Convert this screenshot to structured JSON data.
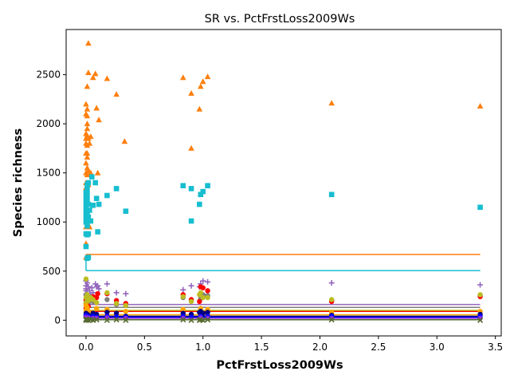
{
  "chart_data": {
    "type": "scatter",
    "title": "SR vs. PctFrstLoss2009Ws",
    "xlabel": "PctFrstLoss2009Ws",
    "ylabel": "Species richness",
    "xlim": [
      -0.17,
      3.55
    ],
    "ylim": [
      -160,
      2960
    ],
    "xticks": [
      0.0,
      0.5,
      1.0,
      1.5,
      2.0,
      2.5,
      3.0,
      3.5
    ],
    "xtick_labels": [
      "0.0",
      "0.5",
      "1.0",
      "1.5",
      "2.0",
      "2.5",
      "3.0",
      "3.5"
    ],
    "yticks": [
      0,
      500,
      1000,
      1500,
      2000,
      2500
    ],
    "ytick_labels": [
      "0",
      "500",
      "1000",
      "1500",
      "2000",
      "2500"
    ],
    "grid": false,
    "legend": "none",
    "series": [
      {
        "color": "#ff7f0e",
        "marker": "triangle",
        "hline": 670,
        "points": [
          [
            0.0,
            1850
          ],
          [
            0.0,
            1800
          ],
          [
            0.0,
            1900
          ],
          [
            0.0,
            1700
          ],
          [
            0.0,
            1600
          ],
          [
            0.0,
            2100
          ],
          [
            0.0,
            2200
          ],
          [
            0.0,
            1500
          ],
          [
            0.0,
            1400
          ],
          [
            0.0,
            1350
          ],
          [
            0.0,
            1000
          ],
          [
            0.0,
            950
          ],
          [
            0.0,
            780
          ],
          [
            0.0,
            640
          ],
          [
            0.01,
            2380
          ],
          [
            0.01,
            2150
          ],
          [
            0.01,
            2080
          ],
          [
            0.01,
            2000
          ],
          [
            0.01,
            1950
          ],
          [
            0.01,
            1880
          ],
          [
            0.01,
            1780
          ],
          [
            0.01,
            1700
          ],
          [
            0.01,
            1660
          ],
          [
            0.01,
            1550
          ],
          [
            0.01,
            1480
          ],
          [
            0.01,
            1200
          ],
          [
            0.02,
            2520
          ],
          [
            0.02,
            2820
          ],
          [
            0.02,
            1850
          ],
          [
            0.02,
            1520
          ],
          [
            0.02,
            1380
          ],
          [
            0.03,
            1800
          ],
          [
            0.03,
            950
          ],
          [
            0.04,
            1870
          ],
          [
            0.04,
            1500
          ],
          [
            0.06,
            2470
          ],
          [
            0.08,
            2510
          ],
          [
            0.09,
            2160
          ],
          [
            0.1,
            1500
          ],
          [
            0.11,
            2040
          ],
          [
            0.18,
            2460
          ],
          [
            0.26,
            2300
          ],
          [
            0.33,
            1820
          ],
          [
            0.83,
            2470
          ],
          [
            0.9,
            2310
          ],
          [
            0.9,
            1750
          ],
          [
            0.97,
            2150
          ],
          [
            0.98,
            2380
          ],
          [
            1.0,
            2430
          ],
          [
            1.04,
            2480
          ],
          [
            2.1,
            2210
          ],
          [
            3.37,
            2180
          ]
        ]
      },
      {
        "color": "#17becf",
        "marker": "square",
        "hline": 505,
        "points": [
          [
            0.0,
            1300
          ],
          [
            0.0,
            1250
          ],
          [
            0.0,
            1200
          ],
          [
            0.0,
            1150
          ],
          [
            0.0,
            1100
          ],
          [
            0.0,
            1050
          ],
          [
            0.0,
            1000
          ],
          [
            0.0,
            880
          ],
          [
            0.0,
            750
          ],
          [
            0.01,
            1380
          ],
          [
            0.01,
            1330
          ],
          [
            0.01,
            1280
          ],
          [
            0.01,
            1230
          ],
          [
            0.01,
            1080
          ],
          [
            0.01,
            1020
          ],
          [
            0.01,
            960
          ],
          [
            0.01,
            870
          ],
          [
            0.01,
            630
          ],
          [
            0.02,
            1400
          ],
          [
            0.02,
            1180
          ],
          [
            0.02,
            1050
          ],
          [
            0.02,
            880
          ],
          [
            0.02,
            640
          ],
          [
            0.03,
            1120
          ],
          [
            0.04,
            1010
          ],
          [
            0.05,
            1460
          ],
          [
            0.06,
            1170
          ],
          [
            0.08,
            1400
          ],
          [
            0.09,
            1240
          ],
          [
            0.1,
            900
          ],
          [
            0.11,
            1180
          ],
          [
            0.18,
            1270
          ],
          [
            0.26,
            1340
          ],
          [
            0.34,
            1110
          ],
          [
            0.83,
            1370
          ],
          [
            0.9,
            1340
          ],
          [
            0.9,
            1010
          ],
          [
            0.97,
            1180
          ],
          [
            0.98,
            1280
          ],
          [
            1.0,
            1310
          ],
          [
            1.04,
            1370
          ],
          [
            2.1,
            1280
          ],
          [
            3.37,
            1150
          ]
        ]
      },
      {
        "color": "#9467bd",
        "marker": "plus",
        "hline": 160,
        "points": [
          [
            0.0,
            400
          ],
          [
            0.0,
            350
          ],
          [
            0.0,
            320
          ],
          [
            0.0,
            300
          ],
          [
            0.0,
            260
          ],
          [
            0.01,
            380
          ],
          [
            0.01,
            300
          ],
          [
            0.01,
            250
          ],
          [
            0.02,
            340
          ],
          [
            0.02,
            220
          ],
          [
            0.03,
            300
          ],
          [
            0.04,
            260
          ],
          [
            0.05,
            330
          ],
          [
            0.06,
            280
          ],
          [
            0.08,
            370
          ],
          [
            0.09,
            340
          ],
          [
            0.1,
            350
          ],
          [
            0.11,
            320
          ],
          [
            0.18,
            370
          ],
          [
            0.26,
            280
          ],
          [
            0.34,
            270
          ],
          [
            0.83,
            310
          ],
          [
            0.9,
            350
          ],
          [
            0.97,
            340
          ],
          [
            0.98,
            370
          ],
          [
            1.0,
            400
          ],
          [
            1.04,
            390
          ],
          [
            2.1,
            380
          ],
          [
            3.37,
            360
          ]
        ]
      },
      {
        "color": "#7f7f7f",
        "marker": "circle",
        "hline": 130,
        "points": [
          [
            0.0,
            260
          ],
          [
            0.0,
            200
          ],
          [
            0.0,
            150
          ],
          [
            0.01,
            230
          ],
          [
            0.02,
            180
          ],
          [
            0.04,
            210
          ],
          [
            0.06,
            190
          ],
          [
            0.09,
            230
          ],
          [
            0.18,
            210
          ],
          [
            0.26,
            160
          ],
          [
            0.34,
            150
          ],
          [
            0.83,
            230
          ],
          [
            0.9,
            200
          ],
          [
            0.98,
            220
          ],
          [
            1.0,
            260
          ],
          [
            1.04,
            250
          ],
          [
            2.1,
            200
          ],
          [
            3.37,
            250
          ]
        ]
      },
      {
        "color": "#ff0000",
        "marker": "circle",
        "hline": 90,
        "points": [
          [
            0.0,
            210
          ],
          [
            0.0,
            170
          ],
          [
            0.0,
            120
          ],
          [
            0.01,
            190
          ],
          [
            0.02,
            140
          ],
          [
            0.06,
            240
          ],
          [
            0.09,
            230
          ],
          [
            0.1,
            270
          ],
          [
            0.18,
            270
          ],
          [
            0.26,
            200
          ],
          [
            0.34,
            170
          ],
          [
            0.83,
            260
          ],
          [
            0.9,
            210
          ],
          [
            0.97,
            190
          ],
          [
            0.98,
            340
          ],
          [
            1.0,
            330
          ],
          [
            1.04,
            300
          ],
          [
            2.1,
            190
          ],
          [
            3.37,
            240
          ]
        ]
      },
      {
        "color": "#bcbd22",
        "marker": "circle",
        "hline": 100,
        "points": [
          [
            0.0,
            420
          ],
          [
            0.0,
            230
          ],
          [
            0.0,
            180
          ],
          [
            0.01,
            260
          ],
          [
            0.02,
            200
          ],
          [
            0.04,
            230
          ],
          [
            0.06,
            210
          ],
          [
            0.09,
            180
          ],
          [
            0.18,
            280
          ],
          [
            0.26,
            170
          ],
          [
            0.34,
            150
          ],
          [
            0.83,
            240
          ],
          [
            0.9,
            190
          ],
          [
            0.97,
            260
          ],
          [
            0.98,
            280
          ],
          [
            1.0,
            230
          ],
          [
            1.04,
            230
          ],
          [
            2.1,
            210
          ],
          [
            3.37,
            260
          ]
        ]
      },
      {
        "color": "#ffa500",
        "marker": "circle",
        "hline": 55,
        "points": [
          [
            0.0,
            150
          ],
          [
            0.0,
            100
          ],
          [
            0.01,
            130
          ],
          [
            0.02,
            90
          ],
          [
            0.09,
            120
          ],
          [
            0.18,
            110
          ],
          [
            0.34,
            90
          ],
          [
            0.83,
            110
          ],
          [
            0.98,
            120
          ],
          [
            1.04,
            110
          ],
          [
            2.1,
            80
          ],
          [
            3.37,
            90
          ]
        ]
      },
      {
        "color": "#000080",
        "marker": "circle",
        "hline": 40,
        "points": [
          [
            0.0,
            70
          ],
          [
            0.0,
            40
          ],
          [
            0.01,
            60
          ],
          [
            0.02,
            50
          ],
          [
            0.06,
            70
          ],
          [
            0.09,
            60
          ],
          [
            0.18,
            80
          ],
          [
            0.26,
            70
          ],
          [
            0.34,
            40
          ],
          [
            0.83,
            70
          ],
          [
            0.9,
            60
          ],
          [
            0.97,
            80
          ],
          [
            0.98,
            90
          ],
          [
            1.0,
            70
          ],
          [
            1.04,
            80
          ],
          [
            2.1,
            50
          ],
          [
            3.37,
            60
          ]
        ]
      },
      {
        "color": "#0000ff",
        "marker": "circle",
        "hline": 30,
        "points": [
          [
            0.0,
            50
          ],
          [
            0.0,
            30
          ],
          [
            0.01,
            40
          ],
          [
            0.02,
            35
          ],
          [
            0.06,
            40
          ],
          [
            0.09,
            30
          ],
          [
            0.18,
            40
          ],
          [
            0.26,
            35
          ],
          [
            0.34,
            30
          ],
          [
            0.83,
            40
          ],
          [
            0.9,
            30
          ],
          [
            0.98,
            40
          ],
          [
            1.04,
            40
          ],
          [
            2.1,
            40
          ],
          [
            3.37,
            40
          ]
        ]
      },
      {
        "color": "#8a2be2",
        "marker": "circle",
        "hline": 20,
        "points": [
          [
            0.0,
            30
          ],
          [
            0.01,
            20
          ],
          [
            0.02,
            25
          ],
          [
            0.06,
            20
          ],
          [
            0.09,
            20
          ],
          [
            0.18,
            25
          ],
          [
            0.34,
            20
          ],
          [
            0.83,
            20
          ],
          [
            0.98,
            25
          ],
          [
            1.04,
            20
          ],
          [
            2.1,
            20
          ],
          [
            3.37,
            20
          ]
        ]
      },
      {
        "color": "#556b2f",
        "marker": "x",
        "hline": 5,
        "points": [
          [
            0.0,
            10
          ],
          [
            0.0,
            0
          ],
          [
            0.01,
            5
          ],
          [
            0.02,
            0
          ],
          [
            0.04,
            5
          ],
          [
            0.06,
            0
          ],
          [
            0.09,
            5
          ],
          [
            0.18,
            0
          ],
          [
            0.26,
            5
          ],
          [
            0.34,
            0
          ],
          [
            0.83,
            5
          ],
          [
            0.9,
            0
          ],
          [
            0.97,
            0
          ],
          [
            0.98,
            5
          ],
          [
            1.0,
            0
          ],
          [
            1.04,
            5
          ],
          [
            2.1,
            5
          ],
          [
            3.37,
            0
          ]
        ]
      }
    ]
  }
}
